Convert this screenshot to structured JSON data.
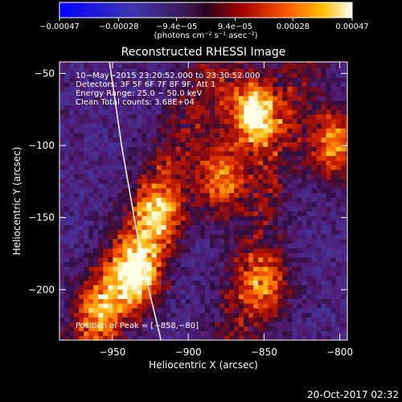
{
  "chart_data": {
    "type": "heatmap",
    "title": "Reconstructed RHESSI Image",
    "xlabel": "Heliocentric X (arcsec)",
    "ylabel": "Heliocentric Y (arcsec)",
    "xlim": [
      -985,
      -795
    ],
    "ylim": [
      -235,
      -42
    ],
    "x_ticks": [
      -950,
      -900,
      -850,
      -800
    ],
    "y_ticks": [
      -50,
      -100,
      -150,
      -200
    ],
    "x_tick_labels": [
      "−950",
      "−900",
      "−850",
      "−800"
    ],
    "y_tick_labels": [
      "−50",
      "−100",
      "−150",
      "−200"
    ],
    "colorbar": {
      "ticks": [
        -0.00047,
        -0.00028,
        -9.4e-05,
        9.4e-05,
        0.00028,
        0.00047
      ],
      "tick_labels": [
        "−0.00047",
        "−0.00028",
        "−9.4e−05",
        "9.4e−05",
        "0.00028",
        "0.00047"
      ],
      "unit_label": "(photons cm⁻² s⁻¹ asec⁻²)",
      "range": [
        -0.00047,
        0.00047
      ]
    },
    "annotations": [
      "10−May−2015 23:20:52.000 to 23:30:52.000",
      "Detectors: 3F 5F 6F 7F 8F 9F, Att 1",
      "Energy Range: 25.0 − 50.0 keV",
      "Clean    Total counts: 3.68E+04"
    ],
    "peak_label": "Position of Peak = [−858,−80]",
    "peak": [
      -858,
      -80
    ],
    "bright_sources": [
      {
        "x": -858,
        "y": -80,
        "intensity": 1.0
      },
      {
        "x": -935,
        "y": -190,
        "intensity": 0.85
      },
      {
        "x": -805,
        "y": -100,
        "intensity": 0.75
      },
      {
        "x": -880,
        "y": -125,
        "intensity": 0.7
      },
      {
        "x": -920,
        "y": -150,
        "intensity": 0.6
      },
      {
        "x": -850,
        "y": -200,
        "intensity": 0.55
      },
      {
        "x": -960,
        "y": -215,
        "intensity": 0.5
      }
    ],
    "limb_curve": [
      [
        -952,
        -42
      ],
      [
        -944,
        -100
      ],
      [
        -934,
        -160
      ],
      [
        -926,
        -200
      ],
      [
        -918,
        -235
      ]
    ]
  },
  "footer": {
    "timestamp": "20-Oct-2017 02:32"
  },
  "colors": {
    "background": "#000000",
    "text": "#ffffff"
  }
}
